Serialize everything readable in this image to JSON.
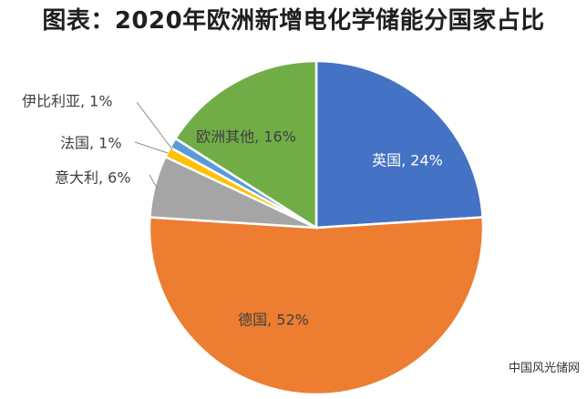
{
  "chart_data": {
    "type": "pie",
    "title": "图表：2020年欧洲新增电化学储能分国家占比",
    "slices": [
      {
        "name": "英国",
        "value": 24,
        "label": "英国, 24%",
        "color": "#4472c4",
        "label_color": "#ffffff"
      },
      {
        "name": "德国",
        "value": 52,
        "label": "德国, 52%",
        "color": "#ed7d31",
        "label_color": "#404040"
      },
      {
        "name": "意大利",
        "value": 6,
        "label": "意大利, 6%",
        "color": "#a5a5a5",
        "label_color": "#404040"
      },
      {
        "name": "法国",
        "value": 1,
        "label": "法国, 1%",
        "color": "#ffc000",
        "label_color": "#404040"
      },
      {
        "name": "伊比利亚",
        "value": 1,
        "label": "伊比利亚, 1%",
        "color": "#5b9bd5",
        "label_color": "#404040"
      },
      {
        "name": "欧洲其他",
        "value": 16,
        "label": "欧洲其他, 16%",
        "color": "#70ad47",
        "label_color": "#404040"
      }
    ],
    "start_angle_deg": 0,
    "direction": "clockwise"
  },
  "watermark": "中国风光储网"
}
